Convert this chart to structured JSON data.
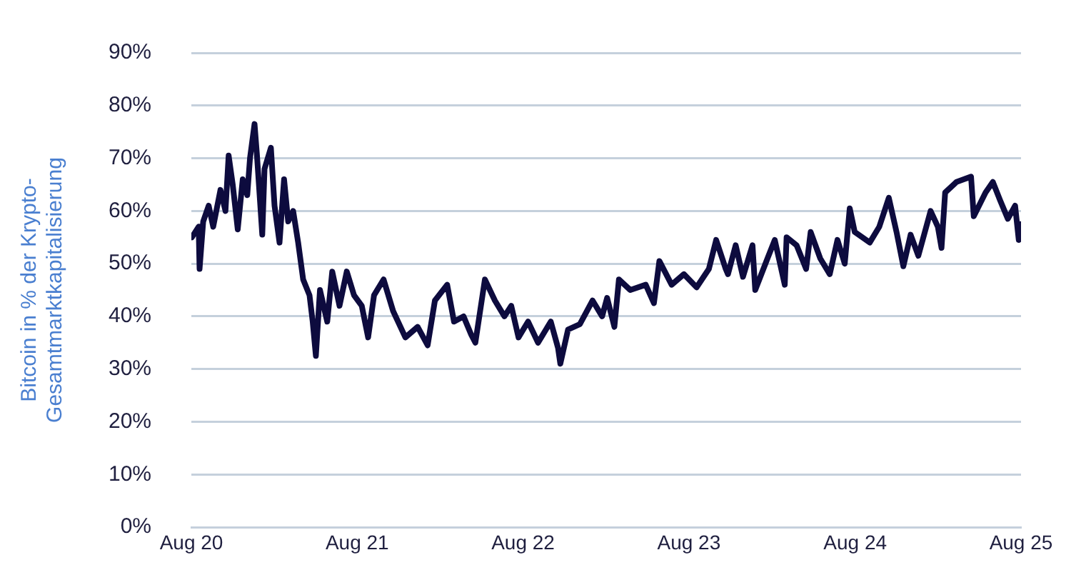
{
  "chart_data": {
    "type": "line",
    "ylabel": "Bitcoin in % der Krypto-\nGesamtmarktkapitalisierung",
    "xlim": [
      "2020-08-01",
      "2025-08-01"
    ],
    "xticks": [
      {
        "value": "2020-08-01",
        "label": "Aug 20"
      },
      {
        "value": "2021-08-01",
        "label": "Aug 21"
      },
      {
        "value": "2022-08-01",
        "label": "Aug 22"
      },
      {
        "value": "2023-08-01",
        "label": "Aug 23"
      },
      {
        "value": "2024-08-01",
        "label": "Aug 24"
      },
      {
        "value": "2025-08-01",
        "label": "Aug 25"
      }
    ],
    "ylim": [
      0,
      90
    ],
    "yticks": [
      {
        "value": 0,
        "label": "0%"
      },
      {
        "value": 10,
        "label": "10%"
      },
      {
        "value": 20,
        "label": "20%"
      },
      {
        "value": 30,
        "label": "30%"
      },
      {
        "value": 40,
        "label": "40%"
      },
      {
        "value": 50,
        "label": "50%"
      },
      {
        "value": 60,
        "label": "60%"
      },
      {
        "value": 70,
        "label": "70%"
      },
      {
        "value": 80,
        "label": "80%"
      },
      {
        "value": 90,
        "label": "90%"
      }
    ],
    "grid": "y",
    "legend": false,
    "marker": "none",
    "line_style": "solid",
    "series": [
      {
        "color": "#0d0b3e",
        "x": [
          "2020-08-02",
          "2020-08-17",
          "2020-08-19",
          "2020-08-27",
          "2020-09-08",
          "2020-09-18",
          "2020-10-04",
          "2020-10-15",
          "2020-10-22",
          "2020-10-31",
          "2020-11-11",
          "2020-11-22",
          "2020-12-02",
          "2020-12-08",
          "2020-12-18",
          "2020-12-23",
          "2021-01-04",
          "2021-01-09",
          "2021-01-23",
          "2021-01-31",
          "2021-02-11",
          "2021-02-21",
          "2021-03-02",
          "2021-03-13",
          "2021-03-24",
          "2021-04-04",
          "2021-04-18",
          "2021-04-25",
          "2021-05-02",
          "2021-05-11",
          "2021-05-27",
          "2021-06-07",
          "2021-06-23",
          "2021-07-09",
          "2021-07-25",
          "2021-08-11",
          "2021-08-25",
          "2021-09-07",
          "2021-09-28",
          "2021-10-19",
          "2021-11-15",
          "2021-12-12",
          "2022-01-03",
          "2022-01-19",
          "2022-02-15",
          "2022-03-02",
          "2022-03-23",
          "2022-04-09",
          "2022-04-18",
          "2022-05-09",
          "2022-05-31",
          "2022-06-21",
          "2022-07-06",
          "2022-07-22",
          "2022-08-12",
          "2022-09-03",
          "2022-10-01",
          "2022-10-17",
          "2022-10-22",
          "2022-11-08",
          "2022-12-04",
          "2023-01-01",
          "2023-01-22",
          "2023-02-02",
          "2023-02-18",
          "2023-02-28",
          "2023-03-25",
          "2023-04-28",
          "2023-05-16",
          "2023-05-28",
          "2023-06-24",
          "2023-07-21",
          "2023-08-18",
          "2023-09-14",
          "2023-09-30",
          "2023-10-21",
          "2023-10-26",
          "2023-11-12",
          "2023-11-28",
          "2023-12-19",
          "2023-12-25",
          "2024-01-21",
          "2024-02-06",
          "2024-02-28",
          "2024-03-03",
          "2024-03-25",
          "2024-04-15",
          "2024-04-25",
          "2024-05-16",
          "2024-06-06",
          "2024-06-23",
          "2024-07-09",
          "2024-07-20",
          "2024-07-31",
          "2024-09-02",
          "2024-09-23",
          "2024-10-14",
          "2024-10-31",
          "2024-11-15",
          "2024-12-01",
          "2024-12-18",
          "2025-01-14",
          "2025-01-30",
          "2025-02-07",
          "2025-02-15",
          "2025-03-12",
          "2025-03-28",
          "2025-04-13",
          "2025-04-19",
          "2025-05-15",
          "2025-05-31",
          "2025-06-16",
          "2025-07-03",
          "2025-07-19",
          "2025-07-27",
          "2025-07-31"
        ],
        "values": [
          55,
          57,
          49,
          58,
          61,
          57,
          64,
          60,
          70.5,
          65,
          56.5,
          66,
          63,
          70,
          76.5,
          71,
          55.5,
          68,
          72,
          61,
          54,
          66,
          58,
          60,
          54,
          47,
          44,
          39,
          32.5,
          45,
          39,
          48.5,
          42,
          48.5,
          44,
          42,
          36,
          44,
          47,
          41,
          36,
          38,
          34.5,
          43,
          46,
          39,
          40,
          36.5,
          35,
          47,
          43,
          40,
          42,
          36,
          39,
          35,
          39,
          34,
          31,
          37.5,
          38.5,
          43,
          40,
          43.5,
          38,
          47,
          45,
          46,
          42.5,
          50.5,
          46,
          48,
          45.5,
          49,
          54.5,
          49,
          48,
          53.5,
          47.5,
          53.5,
          45,
          51,
          54.5,
          46,
          55,
          53.5,
          49,
          56,
          51,
          48,
          54.5,
          50,
          60.5,
          56,
          54,
          57,
          62.5,
          56,
          49.5,
          55.5,
          51.5,
          60,
          57,
          53,
          63.5,
          65.5,
          66,
          66.5,
          59,
          63.5,
          65.5,
          62,
          58.5,
          61,
          54.5,
          57.5
        ]
      }
    ]
  }
}
